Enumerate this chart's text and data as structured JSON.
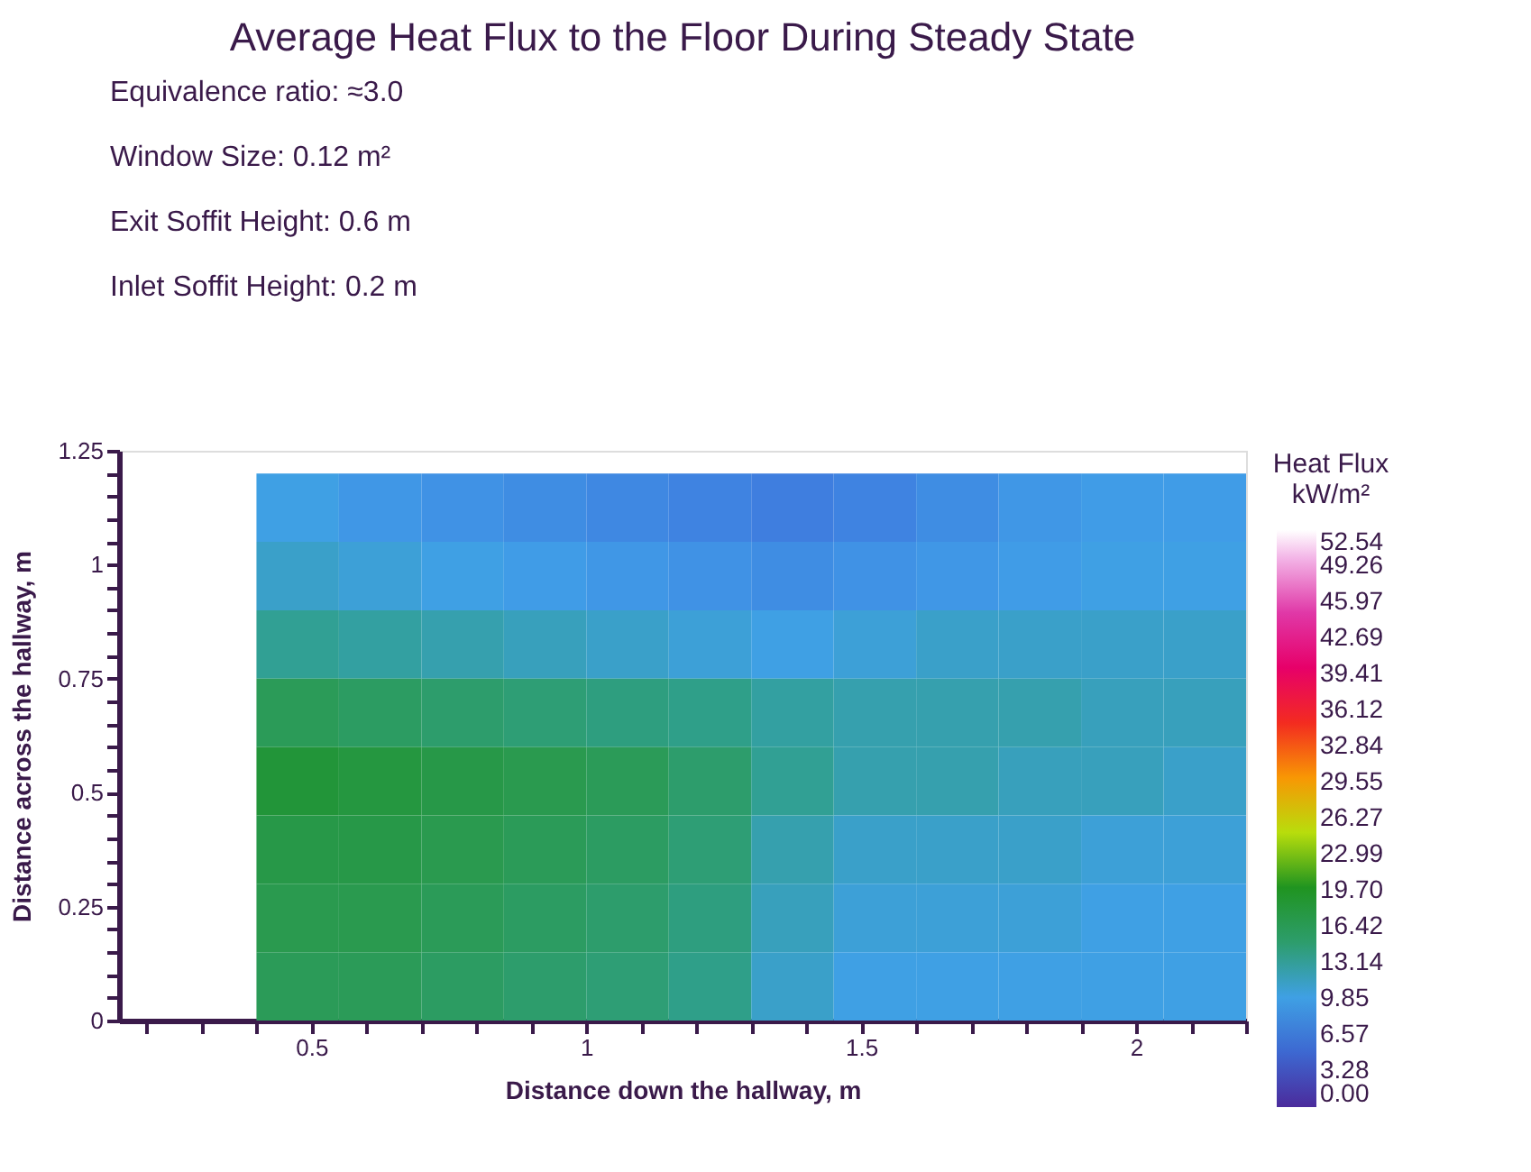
{
  "chart_data": {
    "type": "heatmap",
    "title": "Average Heat Flux to the Floor During Steady State",
    "annotations": [
      "Equivalence ratio: ≈3.0",
      "Window Size: 0.12 m²",
      "Exit Soffit Height: 0.6 m",
      "Inlet Soffit Height: 0.2 m"
    ],
    "xlabel": "Distance down the hallway, m",
    "ylabel": "Distance across the hallway, m",
    "clabel": "Heat Flux kW/m²",
    "x": [
      0.475,
      0.625,
      0.775,
      0.925,
      1.075,
      1.225,
      1.375,
      1.525,
      1.675,
      1.825,
      1.975,
      2.125
    ],
    "y": [
      1.125,
      0.975,
      0.825,
      0.675,
      0.525,
      0.375,
      0.225,
      0.075
    ],
    "cells": [
      [
        10,
        9,
        8.5,
        8,
        7.5,
        7,
        6.5,
        7,
        8,
        9,
        9.5,
        9.5
      ],
      [
        11,
        10.5,
        10,
        9.5,
        9,
        8.5,
        8,
        8.5,
        9,
        9.5,
        10,
        10
      ],
      [
        13,
        12.5,
        12,
        11.5,
        11,
        10.5,
        10,
        10.5,
        11,
        11,
        11,
        11
      ],
      [
        16,
        15.5,
        15,
        14.5,
        14,
        13.5,
        12.5,
        12,
        12,
        12,
        11.5,
        11.5
      ],
      [
        18,
        17.5,
        17,
        16.5,
        16,
        15,
        13,
        12,
        12,
        11.5,
        11.5,
        11
      ],
      [
        17,
        17,
        16.5,
        16,
        15.5,
        14.5,
        12,
        11,
        11,
        11,
        10.5,
        10.5
      ],
      [
        16.5,
        16.5,
        16,
        15.5,
        15,
        14,
        11.5,
        10.5,
        10.5,
        10.5,
        10,
        10
      ],
      [
        16,
        16,
        15.5,
        15,
        14.5,
        13.5,
        11,
        10,
        10,
        10,
        10,
        10
      ]
    ],
    "clim": [
      0,
      52.54
    ],
    "cticks": [
      {
        "value": 0,
        "label": "0.00"
      },
      3.28,
      6.57,
      9.85,
      13.14,
      16.42,
      {
        "value": 19.7,
        "label": "19.70"
      },
      22.99,
      26.27,
      29.55,
      32.84,
      36.12,
      39.41,
      42.69,
      45.97,
      49.26,
      52.54
    ],
    "colors": [
      "#4b2b9c",
      "#3a4fc0",
      "#3f7fe0",
      "#40a0e8",
      "#30a090",
      "#2a9a50",
      "#1a9020",
      "#60c020",
      "#f0f000",
      "#f8a000",
      "#f86020",
      "#f01020",
      "#e80060",
      "#e00090",
      "#e050b0",
      "#f0a0e0",
      "#ffffff"
    ],
    "xlim": [
      0.15,
      2.2
    ],
    "xticks": [
      {
        "value": 0.2,
        "label": null
      },
      {
        "value": 0.3,
        "label": null
      },
      {
        "value": 0.4,
        "label": null
      },
      0.5,
      {
        "value": 0.6,
        "label": null
      },
      {
        "value": 0.7,
        "label": null
      },
      {
        "value": 0.8,
        "label": null
      },
      {
        "value": 0.9,
        "label": null
      },
      1,
      {
        "value": 1.1,
        "label": null
      },
      {
        "value": 1.2,
        "label": null
      },
      {
        "value": 1.3,
        "label": null
      },
      {
        "value": 1.4,
        "label": null
      },
      1.5,
      {
        "value": 1.6,
        "label": null
      },
      {
        "value": 1.7,
        "label": null
      },
      {
        "value": 1.8,
        "label": null
      },
      {
        "value": 1.9,
        "label": null
      },
      2,
      {
        "value": 2.1,
        "label": null
      },
      {
        "value": 2.2,
        "label": null
      }
    ],
    "ylim": [
      0,
      1.25
    ],
    "yticks": [
      0,
      {
        "value": 0.05,
        "label": null
      },
      {
        "value": 0.1,
        "label": null
      },
      {
        "value": 0.15,
        "label": null
      },
      {
        "value": 0.2,
        "label": null
      },
      0.25,
      {
        "value": 0.3,
        "label": null
      },
      {
        "value": 0.35,
        "label": null
      },
      {
        "value": 0.4,
        "label": null
      },
      {
        "value": 0.45,
        "label": null
      },
      0.5,
      {
        "value": 0.55,
        "label": null
      },
      {
        "value": 0.6,
        "label": null
      },
      {
        "value": 0.65,
        "label": null
      },
      {
        "value": 0.7,
        "label": null
      },
      0.75,
      {
        "value": 0.8,
        "label": null
      },
      {
        "value": 0.85,
        "label": null
      },
      {
        "value": 0.9,
        "label": null
      },
      {
        "value": 0.95,
        "label": null
      },
      1,
      {
        "value": 1.05,
        "label": null
      },
      {
        "value": 1.1,
        "label": null
      },
      {
        "value": 1.15,
        "label": null
      },
      {
        "value": 1.2,
        "label": null
      },
      1.25
    ],
    "grid": false
  }
}
